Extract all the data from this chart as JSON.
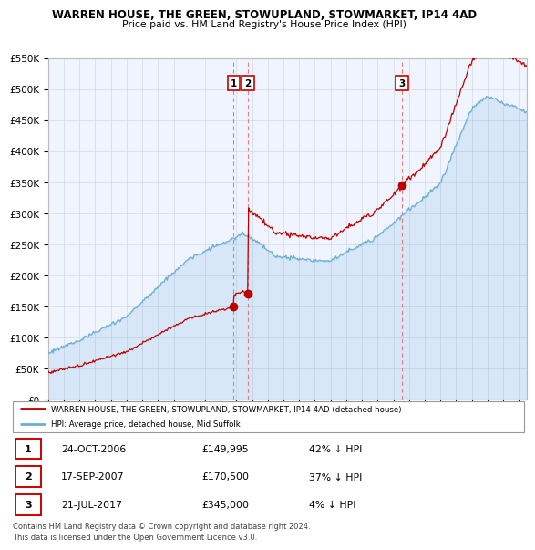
{
  "title": "WARREN HOUSE, THE GREEN, STOWUPLAND, STOWMARKET, IP14 4AD",
  "subtitle": "Price paid vs. HM Land Registry's House Price Index (HPI)",
  "hpi_label": "HPI: Average price, detached house, Mid Suffolk",
  "property_label": "WARREN HOUSE, THE GREEN, STOWUPLAND, STOWMARKET, IP14 4AD (detached house)",
  "ylabel_ticks": [
    "£0",
    "£50K",
    "£100K",
    "£150K",
    "£200K",
    "£250K",
    "£300K",
    "£350K",
    "£400K",
    "£450K",
    "£500K",
    "£550K"
  ],
  "ytick_values": [
    0,
    50000,
    100000,
    150000,
    200000,
    250000,
    300000,
    350000,
    400000,
    450000,
    500000,
    550000
  ],
  "hpi_color": "#6aaed6",
  "property_color": "#c00000",
  "vline_color": "#e87070",
  "sale_points": [
    {
      "label": "1",
      "date": 2006.82,
      "value": 149995
    },
    {
      "label": "2",
      "date": 2007.72,
      "value": 170500
    },
    {
      "label": "3",
      "date": 2017.55,
      "value": 345000
    }
  ],
  "table_rows": [
    {
      "num": "1",
      "date": "24-OCT-2006",
      "price": "£149,995",
      "change": "42% ↓ HPI"
    },
    {
      "num": "2",
      "date": "17-SEP-2007",
      "price": "£170,500",
      "change": "37% ↓ HPI"
    },
    {
      "num": "3",
      "date": "21-JUL-2017",
      "price": "£345,000",
      "change": "4% ↓ HPI"
    }
  ],
  "footer": "Contains HM Land Registry data © Crown copyright and database right 2024.\nThis data is licensed under the Open Government Licence v3.0.",
  "xmin": 1995.0,
  "xmax": 2025.5,
  "ymin": 0,
  "ymax": 550000
}
